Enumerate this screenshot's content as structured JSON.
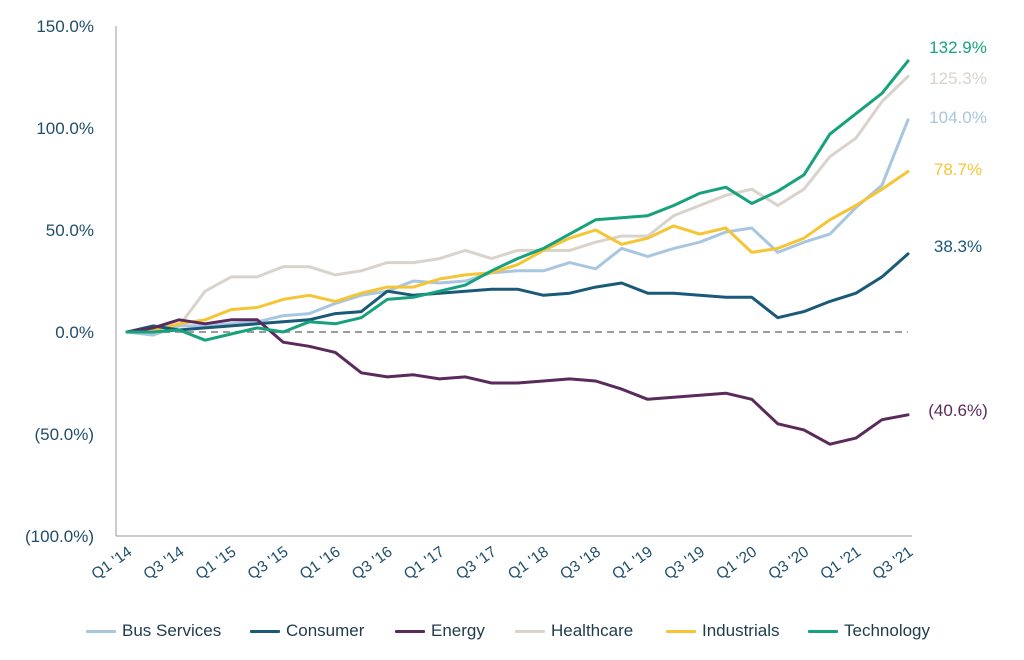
{
  "chart_data": {
    "type": "line",
    "x": [
      "Q1 '14",
      "Q2 '14",
      "Q3 '14",
      "Q4 '14",
      "Q1 '15",
      "Q2 '15",
      "Q3 '15",
      "Q4 '15",
      "Q1 '16",
      "Q2 '16",
      "Q3 '16",
      "Q4 '16",
      "Q1 '17",
      "Q2 '17",
      "Q3 '17",
      "Q4 '17",
      "Q1 '18",
      "Q2 '18",
      "Q3 '18",
      "Q4 '18",
      "Q1 '19",
      "Q2 '19",
      "Q3 '19",
      "Q4 '19",
      "Q1 '20",
      "Q2 '20",
      "Q3 '20",
      "Q4 '20",
      "Q1 '21",
      "Q2 '21",
      "Q3 '21"
    ],
    "xticks": [
      "Q1 '14",
      "Q3 '14",
      "Q1 '15",
      "Q3 '15",
      "Q1 '16",
      "Q3 '16",
      "Q1 '17",
      "Q3 '17",
      "Q1 '18",
      "Q3 '18",
      "Q1 '19",
      "Q3 '19",
      "Q1 '20",
      "Q3 '20",
      "Q1 '21",
      "Q3 '21"
    ],
    "ylim": [
      -100,
      150
    ],
    "yticks": [
      -100,
      -50,
      0,
      50,
      100,
      150
    ],
    "ytick_labels": [
      "(100.0%)",
      "(50.0%)",
      "0.0%",
      "50.0%",
      "100.0%",
      "150.0%"
    ],
    "zero_line": "dashed",
    "legend_position": "bottom",
    "series": [
      {
        "name": "Bus Services",
        "color": "#a9c6e0",
        "end_label": "104.0%",
        "values": [
          0,
          -1.5,
          3,
          3,
          4,
          5,
          8,
          9,
          14,
          18,
          20,
          25,
          24,
          25,
          29,
          30,
          30,
          34,
          31,
          41,
          37,
          41,
          44,
          49,
          51,
          39,
          44,
          48,
          61,
          72,
          104
        ]
      },
      {
        "name": "Consumer",
        "color": "#1a5a78",
        "end_label": "38.3%",
        "values": [
          0,
          3,
          1,
          2,
          3,
          4,
          5,
          6,
          9,
          10,
          20,
          18,
          19,
          20,
          21,
          21,
          18,
          19,
          22,
          24,
          19,
          19,
          18,
          17,
          17,
          7,
          10,
          15,
          19,
          27,
          38.3
        ]
      },
      {
        "name": "Energy",
        "color": "#5b2a5c",
        "end_label": "(40.6%)",
        "values": [
          0,
          2,
          6,
          4,
          6,
          6,
          -5,
          -7,
          -10,
          -20,
          -22,
          -21,
          -23,
          -22,
          -25,
          -25,
          -24,
          -23,
          -24,
          -28,
          -33,
          -32,
          -31,
          -30,
          -33,
          -45,
          -48,
          -55,
          -52,
          -43,
          -40.6
        ]
      },
      {
        "name": "Healthcare",
        "color": "#d9d3cc",
        "end_label": "125.3%",
        "values": [
          0,
          1,
          3,
          20,
          27,
          27,
          32,
          32,
          28,
          30,
          34,
          34,
          36,
          40,
          36,
          40,
          40,
          40,
          44,
          47,
          47,
          57,
          62,
          67,
          70,
          62,
          70,
          86,
          95,
          113,
          125.3
        ]
      },
      {
        "name": "Industrials",
        "color": "#f5c535",
        "end_label": "78.7%",
        "values": [
          0,
          1,
          4,
          6,
          11,
          12,
          16,
          18,
          15,
          19,
          22,
          22,
          26,
          28,
          29,
          33,
          40,
          46,
          50,
          43,
          46,
          52,
          48,
          51,
          39,
          41,
          46,
          55,
          62,
          70,
          78.7
        ]
      },
      {
        "name": "Technology",
        "color": "#17a27d",
        "end_label": "132.9%",
        "values": [
          0,
          0,
          1,
          -4,
          -1,
          2,
          0,
          5,
          4,
          7,
          16,
          17,
          20,
          23,
          30,
          36,
          41,
          48,
          55,
          56,
          57,
          62,
          68,
          71,
          63,
          69,
          77,
          97,
          107,
          117,
          132.9
        ]
      }
    ]
  }
}
